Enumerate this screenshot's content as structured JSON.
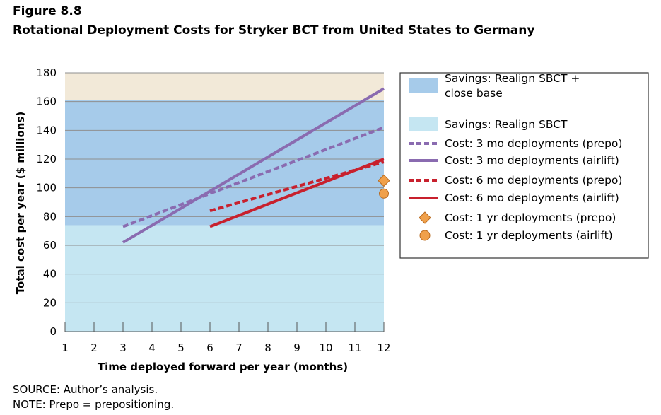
{
  "figure": {
    "number": "Figure 8.8",
    "title": "Rotational Deployment Costs for Stryker BCT from United States to Germany"
  },
  "notes": {
    "source": "SOURCE: Author’s analysis.",
    "note": "NOTE: Prepo = prepositioning."
  },
  "colors": {
    "band_top": "#f2e9d8",
    "band_realign_close": "#a6cbea",
    "band_realign": "#c5e6f2",
    "purple": "#8a6bb0",
    "red": "#c8202d",
    "orange": "#f0a04a"
  },
  "chart_data": {
    "type": "line",
    "xlabel": "Time deployed forward per year (months)",
    "ylabel": "Total cost per year ($ millions)",
    "xlim": [
      1,
      12
    ],
    "ylim": [
      0,
      180
    ],
    "xticks": [
      1,
      2,
      3,
      4,
      5,
      6,
      7,
      8,
      9,
      10,
      11,
      12
    ],
    "yticks": [
      0,
      20,
      40,
      60,
      80,
      100,
      120,
      140,
      160,
      180
    ],
    "grid": true,
    "legend_position": "right",
    "bands": [
      {
        "name": "Savings: Realign SBCT + close base",
        "y_from": 74,
        "y_to": 161,
        "color": "#a6cbea"
      },
      {
        "name": "Savings: Realign SBCT",
        "y_from": 0,
        "y_to": 74,
        "color": "#c5e6f2"
      }
    ],
    "series": [
      {
        "name": "Cost: 3 mo deployments (prepo)",
        "style": "dashed",
        "color": "#8a6bb0",
        "x": [
          3,
          12
        ],
        "y": [
          73,
          142
        ]
      },
      {
        "name": "Cost: 3 mo deployments (airlift)",
        "style": "solid",
        "color": "#8a6bb0",
        "x": [
          3,
          12
        ],
        "y": [
          62,
          169
        ]
      },
      {
        "name": "Cost: 6 mo deployments (prepo)",
        "style": "dashed",
        "color": "#c8202d",
        "x": [
          6,
          12
        ],
        "y": [
          84,
          118
        ]
      },
      {
        "name": "Cost: 6 mo deployments (airlift)",
        "style": "solid",
        "color": "#c8202d",
        "x": [
          6,
          12
        ],
        "y": [
          73,
          120
        ]
      }
    ],
    "points": [
      {
        "name": "Cost: 1 yr deployments (prepo)",
        "marker": "diamond",
        "color": "#f0a04a",
        "x": 12,
        "y": 105
      },
      {
        "name": "Cost: 1 yr deployments (airlift)",
        "marker": "circle",
        "color": "#f0a04a",
        "x": 12,
        "y": 96
      }
    ],
    "legend": [
      {
        "kind": "band",
        "lines": [
          "Savings: Realign SBCT +",
          "close base"
        ],
        "color": "#a6cbea"
      },
      {
        "kind": "band",
        "lines": [
          "Savings: Realign SBCT"
        ],
        "color": "#c5e6f2"
      },
      {
        "kind": "dashed",
        "lines": [
          "Cost: 3 mo deployments (prepo)"
        ],
        "color": "#8a6bb0"
      },
      {
        "kind": "solid",
        "lines": [
          "Cost: 3 mo deployments (airlift)"
        ],
        "color": "#8a6bb0"
      },
      {
        "kind": "dashed",
        "lines": [
          "Cost: 6 mo deployments (prepo)"
        ],
        "color": "#c8202d"
      },
      {
        "kind": "solid",
        "lines": [
          "Cost: 6 mo deployments (airlift)"
        ],
        "color": "#c8202d"
      },
      {
        "kind": "diamond",
        "lines": [
          "Cost: 1 yr deployments (prepo)"
        ],
        "color": "#f0a04a"
      },
      {
        "kind": "circle",
        "lines": [
          "Cost: 1 yr deployments (airlift)"
        ],
        "color": "#f0a04a"
      }
    ]
  }
}
